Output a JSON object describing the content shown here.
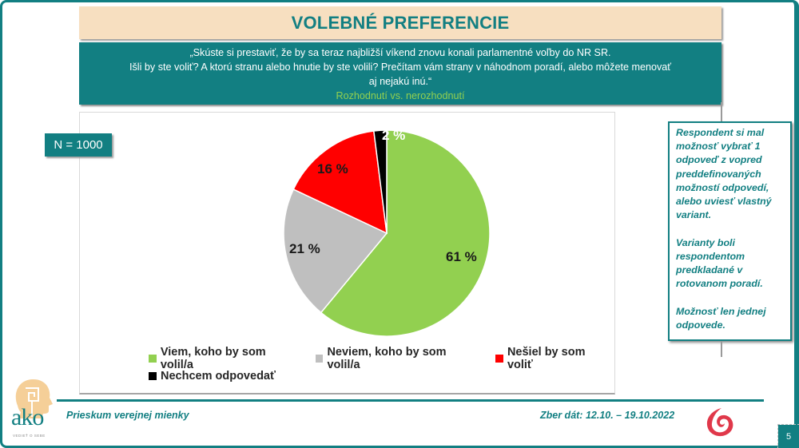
{
  "header": {
    "title": "VOLEBNÉ PREFERENCIE"
  },
  "question": {
    "line1": "„Skúste si prestaviť, že by sa teraz najbližší víkend znovu konali parlamentné voľby do NR SR.",
    "line2": "Išli by ste voliť? A ktorú stranu alebo hnutie by ste volili? Prečítam vám strany v náhodnom poradí, alebo môžete menovať",
    "line3": "aj nejakú inú.“",
    "subtitle": "Rozhodnutí vs. nerozhodnutí"
  },
  "sample": {
    "label": "N = 1000"
  },
  "colors": {
    "teal": "#127f82",
    "title_bg": "#f7dfc0",
    "green": "#92d050",
    "gray": "#bfbfbf",
    "red": "#ff0000",
    "black": "#000000"
  },
  "chart_data": {
    "type": "pie",
    "title": "Rozhodnutí vs. nerozhodnutí",
    "categories": [
      "Viem, koho by som volil/a",
      "Neviem, koho by som volil/a",
      "Nešiel by som voliť",
      "Nechcem odpovedať"
    ],
    "values": [
      61,
      21,
      16,
      2
    ],
    "unit": "%",
    "colors": [
      "#92d050",
      "#bfbfbf",
      "#ff0000",
      "#000000"
    ],
    "labels": [
      "61 %",
      "21 %",
      "16 %",
      "2 %"
    ],
    "legend_position": "bottom",
    "start_angle": "12 o'clock, clockwise"
  },
  "legend": {
    "items": [
      {
        "label": "Viem, koho by som volil/a",
        "color": "#92d050"
      },
      {
        "label": "Neviem, koho by som volil/a",
        "color": "#bfbfbf"
      },
      {
        "label": "Nešiel by som voliť",
        "color": "#ff0000"
      },
      {
        "label": "Nechcem odpovedať",
        "color": "#000000"
      }
    ]
  },
  "note": {
    "paragraph1": "Respondent si mal možnosť vybrať 1 odpoveď z vopred preddefinovaných možností odpovedí, alebo uviesť vlastný variant.",
    "paragraph2": "Varianty boli respondentom predkladané v rotovanom poradí.",
    "paragraph3": "Možnosť len jednej odpovede."
  },
  "footer": {
    "left": "Prieskum verejnej mienky",
    "right": "Zber dát: 12.10. – 19.10.2022",
    "logo_text": "ako",
    "logo_tagline": "VEDIEŤ O SEBE",
    "page_number": "5"
  }
}
